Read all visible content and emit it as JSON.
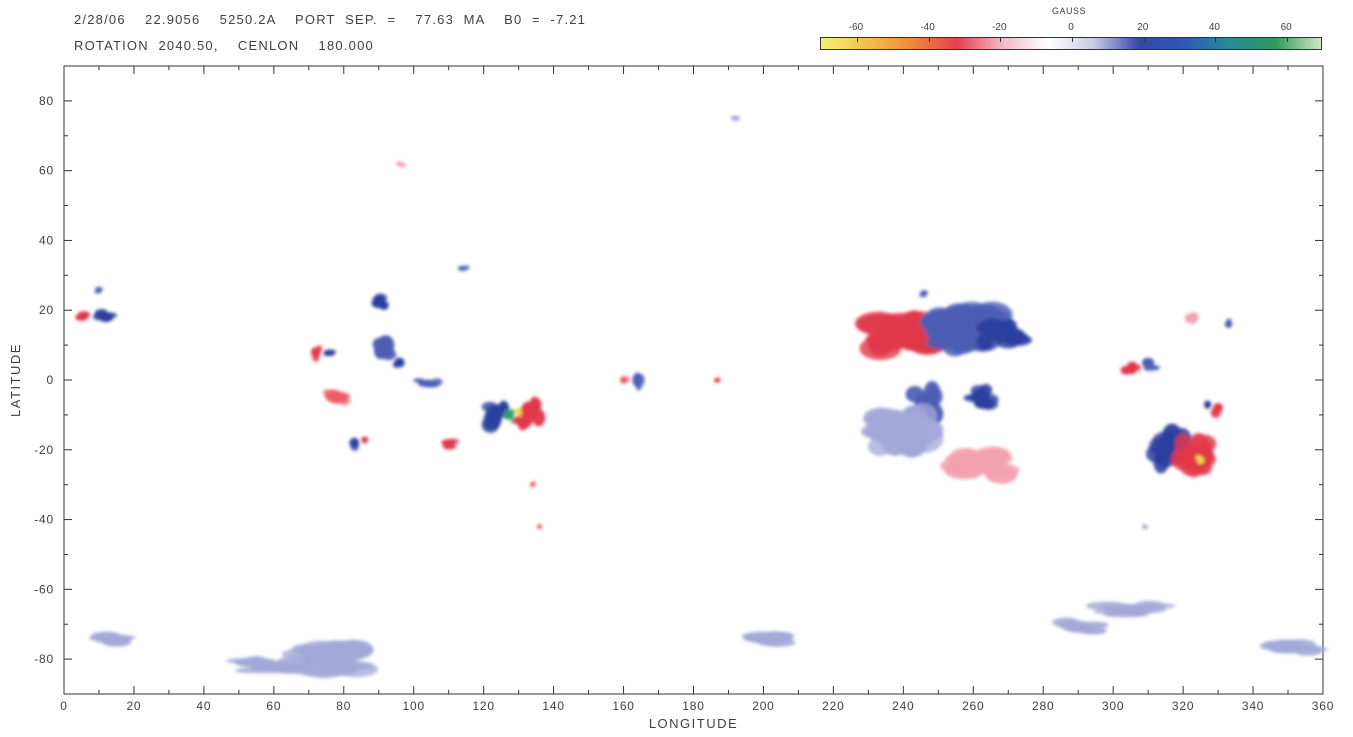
{
  "header": {
    "line1": "2/28/06    22.9056    5250.2A    PORT  SEP.  =    77.63  MA    B0  =  -7.21",
    "line2": "ROTATION  2040.50,    CENLON    180.000"
  },
  "colorbar": {
    "title": "GAUSS",
    "ticks": [
      "-60",
      "-40",
      "-20",
      "0",
      "20",
      "40",
      "60"
    ],
    "tick_values": [
      -60,
      -40,
      -20,
      0,
      20,
      40,
      60
    ],
    "range": [
      -70,
      70
    ],
    "colors": [
      "#f4f07a",
      "#f2c24a",
      "#ee8a3a",
      "#e5404e",
      "#f3b9c6",
      "#ffffff",
      "#c9cbe8",
      "#3348a8",
      "#2f58b8",
      "#2a8a9a",
      "#2f9a5a",
      "#cfe9c4"
    ]
  },
  "chart_data": {
    "type": "heatmap",
    "title": "",
    "xlabel": "LONGITUDE",
    "ylabel": "LATITUDE",
    "xlim": [
      0,
      360
    ],
    "ylim": [
      -90,
      90
    ],
    "xticks": [
      0,
      20,
      40,
      60,
      80,
      100,
      120,
      140,
      160,
      180,
      200,
      220,
      240,
      260,
      280,
      300,
      320,
      340,
      360
    ],
    "yticks": [
      -80,
      -60,
      -40,
      -20,
      0,
      20,
      40,
      60,
      80
    ],
    "colorscale_range_gauss": [
      -70,
      70
    ],
    "features": [
      {
        "lon": 5,
        "lat": 18,
        "rlon": 2.5,
        "rlat": 1.5,
        "gauss": -35
      },
      {
        "lon": 12,
        "lat": 18,
        "rlon": 3,
        "rlat": 2,
        "gauss": 25
      },
      {
        "lon": 10,
        "lat": 26,
        "rlon": 1.5,
        "rlat": 1,
        "gauss": 18
      },
      {
        "lon": 72,
        "lat": 8,
        "rlon": 2,
        "rlat": 2,
        "gauss": -32
      },
      {
        "lon": 76,
        "lat": 8,
        "rlon": 2.5,
        "rlat": 1,
        "gauss": 22
      },
      {
        "lon": 78,
        "lat": -5,
        "rlon": 4,
        "rlat": 2.5,
        "gauss": -20
      },
      {
        "lon": 83,
        "lat": -18,
        "rlon": 2,
        "rlat": 2,
        "gauss": 24
      },
      {
        "lon": 86,
        "lat": -17,
        "rlon": 1.5,
        "rlat": 1,
        "gauss": -30
      },
      {
        "lon": 90,
        "lat": 22,
        "rlon": 3,
        "rlat": 2,
        "gauss": 22
      },
      {
        "lon": 92,
        "lat": 10,
        "rlon": 3.5,
        "rlat": 4,
        "gauss": 16
      },
      {
        "lon": 96,
        "lat": 5,
        "rlon": 2,
        "rlat": 2,
        "gauss": 22
      },
      {
        "lon": 110,
        "lat": -18,
        "rlon": 3,
        "rlat": 1.5,
        "gauss": -32
      },
      {
        "lon": 114,
        "lat": 32,
        "rlon": 2,
        "rlat": 1,
        "gauss": 15
      },
      {
        "lon": 104,
        "lat": -1,
        "rlon": 4,
        "rlat": 1.5,
        "gauss": 14
      },
      {
        "lon": 123,
        "lat": -10,
        "rlon": 3.5,
        "rlat": 4,
        "gauss": 28
      },
      {
        "lon": 127,
        "lat": -10,
        "rlon": 2,
        "rlat": 2,
        "gauss": 45
      },
      {
        "lon": 133,
        "lat": -9,
        "rlon": 3.5,
        "rlat": 4,
        "gauss": -32
      },
      {
        "lon": 130,
        "lat": -9,
        "rlon": 1.2,
        "rlat": 1.5,
        "gauss": -60
      },
      {
        "lon": 134,
        "lat": -30,
        "rlon": 1,
        "rlat": 1,
        "gauss": -25
      },
      {
        "lon": 164,
        "lat": 0,
        "rlon": 2,
        "rlat": 3,
        "gauss": 18
      },
      {
        "lon": 160,
        "lat": 0,
        "rlon": 1.5,
        "rlat": 1.5,
        "gauss": -25
      },
      {
        "lon": 187,
        "lat": 0,
        "rlon": 1,
        "rlat": 1,
        "gauss": -30
      },
      {
        "lon": 240,
        "lat": 13,
        "rlon": 9,
        "rlat": 5,
        "gauss": -26
      },
      {
        "lon": 258,
        "lat": 15,
        "rlon": 10,
        "rlat": 6,
        "gauss": 18
      },
      {
        "lon": 268,
        "lat": 14,
        "rlon": 6,
        "rlat": 4,
        "gauss": 22
      },
      {
        "lon": 262,
        "lat": -5,
        "rlon": 4,
        "rlat": 3,
        "gauss": 22
      },
      {
        "lon": 246,
        "lat": -7,
        "rlon": 4,
        "rlat": 5,
        "gauss": 20
      },
      {
        "lon": 240,
        "lat": -15,
        "rlon": 9,
        "rlat": 6,
        "gauss": 10
      },
      {
        "lon": 262,
        "lat": -24,
        "rlon": 8,
        "rlat": 4,
        "gauss": -10
      },
      {
        "lon": 305,
        "lat": 3,
        "rlon": 2.5,
        "rlat": 2,
        "gauss": -30
      },
      {
        "lon": 310,
        "lat": 5,
        "rlon": 2.5,
        "rlat": 2,
        "gauss": 20
      },
      {
        "lon": 316,
        "lat": -20,
        "rlon": 5,
        "rlat": 5,
        "gauss": 26
      },
      {
        "lon": 323,
        "lat": -22,
        "rlon": 5,
        "rlat": 5,
        "gauss": -32
      },
      {
        "lon": 325,
        "lat": -23,
        "rlon": 1.5,
        "rlat": 1.5,
        "gauss": -55
      },
      {
        "lon": 330,
        "lat": -8,
        "rlon": 2,
        "rlat": 2,
        "gauss": -28
      },
      {
        "lon": 327,
        "lat": -7,
        "rlon": 1.5,
        "rlat": 1.5,
        "gauss": 22
      },
      {
        "lon": 323,
        "lat": 18,
        "rlon": 2,
        "rlat": 2,
        "gauss": -12
      },
      {
        "lon": 333,
        "lat": 16,
        "rlon": 1.5,
        "rlat": 1.5,
        "gauss": 16
      },
      {
        "lon": 76,
        "lat": -80,
        "rlon": 10,
        "rlat": 4,
        "gauss": 12
      },
      {
        "lon": 60,
        "lat": -82,
        "rlon": 10,
        "rlat": 2,
        "gauss": 8
      },
      {
        "lon": 15,
        "lat": -75,
        "rlon": 6,
        "rlat": 2,
        "gauss": 9
      },
      {
        "lon": 290,
        "lat": -71,
        "rlon": 6,
        "rlat": 2,
        "gauss": 10
      },
      {
        "lon": 305,
        "lat": -66,
        "rlon": 10,
        "rlat": 2,
        "gauss": 8
      },
      {
        "lon": 200,
        "lat": -74,
        "rlon": 8,
        "rlat": 2,
        "gauss": 8
      },
      {
        "lon": 350,
        "lat": -77,
        "rlon": 8,
        "rlat": 2,
        "gauss": 8
      },
      {
        "lon": 246,
        "lat": 25,
        "rlon": 1.5,
        "rlat": 1,
        "gauss": 18
      },
      {
        "lon": 309,
        "lat": -42,
        "rlon": 1,
        "rlat": 1,
        "gauss": 12
      },
      {
        "lon": 136,
        "lat": -42,
        "rlon": 1,
        "rlat": 1,
        "gauss": -18
      },
      {
        "lon": 192,
        "lat": 75,
        "rlon": 2,
        "rlat": 0.7,
        "gauss": 12
      },
      {
        "lon": 96,
        "lat": 62,
        "rlon": 1.5,
        "rlat": 1,
        "gauss": -14
      }
    ]
  }
}
